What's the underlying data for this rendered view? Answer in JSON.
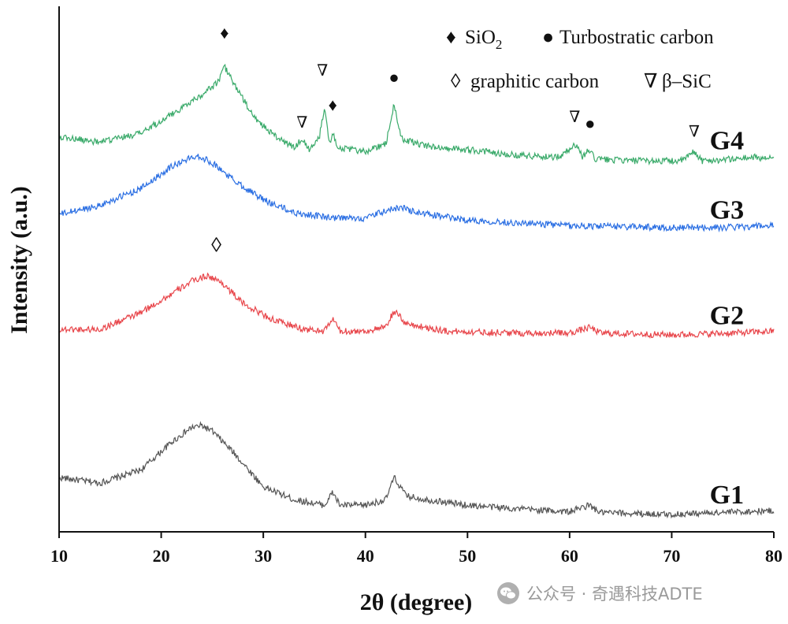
{
  "chart_data": {
    "type": "line",
    "xlabel": "2θ (degree)",
    "ylabel": "Intensity (a.u.)",
    "xlim": [
      10,
      80
    ],
    "xticks": [
      "10",
      "20",
      "30",
      "40",
      "50",
      "60",
      "70",
      "80"
    ],
    "legend": {
      "position": "top-right",
      "entries": [
        {
          "marker": "♦",
          "text": "SiO",
          "sub": "2"
        },
        {
          "marker": "●",
          "text": "Turbostratic carbon"
        },
        {
          "marker": "◊",
          "text": "graphitic carbon"
        },
        {
          "marker": "∇",
          "text": "β–SiC"
        }
      ]
    },
    "series": [
      {
        "name": "G1",
        "color": "#555555",
        "label_x": 78,
        "points": [
          [
            10,
            0.2
          ],
          [
            14,
            0.17
          ],
          [
            18,
            0.24
          ],
          [
            21,
            0.39
          ],
          [
            23,
            0.47
          ],
          [
            24,
            0.48
          ],
          [
            25,
            0.45
          ],
          [
            27,
            0.34
          ],
          [
            30,
            0.15
          ],
          [
            33,
            0.08
          ],
          [
            36,
            0.05
          ],
          [
            36.8,
            0.12
          ],
          [
            37.5,
            0.05
          ],
          [
            40,
            0.05
          ],
          [
            42,
            0.08
          ],
          [
            42.8,
            0.2
          ],
          [
            44,
            0.1
          ],
          [
            46,
            0.08
          ],
          [
            50,
            0.05
          ],
          [
            55,
            0.03
          ],
          [
            60,
            0.015
          ],
          [
            61.9,
            0.05
          ],
          [
            63,
            0.01
          ],
          [
            70,
            0.0
          ],
          [
            74,
            0.01
          ],
          [
            80,
            0.02
          ]
        ]
      },
      {
        "name": "G2",
        "color": "#e8464b",
        "label_x": 78,
        "points": [
          [
            10,
            1.0
          ],
          [
            14,
            1.0
          ],
          [
            18,
            1.09
          ],
          [
            21,
            1.19
          ],
          [
            23,
            1.26
          ],
          [
            24.5,
            1.29
          ],
          [
            26,
            1.25
          ],
          [
            28,
            1.14
          ],
          [
            31,
            1.05
          ],
          [
            34,
            1.0
          ],
          [
            36,
            0.99
          ],
          [
            36.8,
            1.06
          ],
          [
            37.5,
            0.99
          ],
          [
            40,
            0.99
          ],
          [
            42,
            1.01
          ],
          [
            42.8,
            1.1
          ],
          [
            44,
            1.03
          ],
          [
            48,
            0.99
          ],
          [
            55,
            0.98
          ],
          [
            60,
            0.98
          ],
          [
            62,
            1.01
          ],
          [
            63,
            0.98
          ],
          [
            70,
            0.97
          ],
          [
            76,
            0.98
          ],
          [
            80,
            0.99
          ]
        ]
      },
      {
        "name": "G3",
        "color": "#2b6fe3",
        "label_x": 78,
        "points": [
          [
            10,
            1.62
          ],
          [
            14,
            1.67
          ],
          [
            18,
            1.76
          ],
          [
            21,
            1.88
          ],
          [
            23.5,
            1.94
          ],
          [
            25,
            1.9
          ],
          [
            27,
            1.81
          ],
          [
            30,
            1.7
          ],
          [
            33,
            1.63
          ],
          [
            37,
            1.6
          ],
          [
            40,
            1.6
          ],
          [
            42,
            1.64
          ],
          [
            43.5,
            1.66
          ],
          [
            45,
            1.63
          ],
          [
            50,
            1.59
          ],
          [
            55,
            1.575
          ],
          [
            60,
            1.56
          ],
          [
            65,
            1.555
          ],
          [
            70,
            1.55
          ],
          [
            75,
            1.55
          ],
          [
            80,
            1.56
          ]
        ]
      },
      {
        "name": "G4",
        "color": "#3aaa6a",
        "label_x": 78,
        "points": [
          [
            10,
            2.04
          ],
          [
            14,
            2.01
          ],
          [
            18,
            2.06
          ],
          [
            21,
            2.16
          ],
          [
            24,
            2.27
          ],
          [
            25.5,
            2.33
          ],
          [
            26.2,
            2.42
          ],
          [
            27,
            2.34
          ],
          [
            29,
            2.15
          ],
          [
            31,
            2.05
          ],
          [
            33,
            1.98
          ],
          [
            33.8,
            2.03
          ],
          [
            34.5,
            1.97
          ],
          [
            35.5,
            2.04
          ],
          [
            36,
            2.21
          ],
          [
            36.5,
            2.0
          ],
          [
            36.8,
            2.07
          ],
          [
            37.3,
            1.98
          ],
          [
            40,
            1.96
          ],
          [
            42,
            2.0
          ],
          [
            42.8,
            2.21
          ],
          [
            43.5,
            2.03
          ],
          [
            46,
            1.99
          ],
          [
            50,
            1.97
          ],
          [
            55,
            1.94
          ],
          [
            59,
            1.93
          ],
          [
            60.5,
            2.0
          ],
          [
            61.3,
            1.93
          ],
          [
            61.9,
            1.97
          ],
          [
            62.5,
            1.92
          ],
          [
            66,
            1.91
          ],
          [
            71,
            1.91
          ],
          [
            72.2,
            1.96
          ],
          [
            73,
            1.91
          ],
          [
            76,
            1.92
          ],
          [
            78,
            1.93
          ],
          [
            80,
            1.92
          ]
        ]
      }
    ],
    "annotations": [
      {
        "symbol": "♦",
        "x": 26.2,
        "y": 2.57
      },
      {
        "symbol": "∇",
        "x": 33.8,
        "y": 2.09
      },
      {
        "symbol": "∇",
        "x": 35.8,
        "y": 2.37
      },
      {
        "symbol": "♦",
        "x": 36.8,
        "y": 2.18
      },
      {
        "symbol": "●",
        "x": 42.8,
        "y": 2.33
      },
      {
        "symbol": "∇",
        "x": 60.5,
        "y": 2.12
      },
      {
        "symbol": "●",
        "x": 62.0,
        "y": 2.08
      },
      {
        "symbol": "∇",
        "x": 72.2,
        "y": 2.04
      },
      {
        "symbol": "◊",
        "x": 25.4,
        "y": 1.42
      }
    ]
  },
  "watermark": {
    "icon": "wechat-icon",
    "text": "公众号 · 奇遇科技ADTE"
  }
}
